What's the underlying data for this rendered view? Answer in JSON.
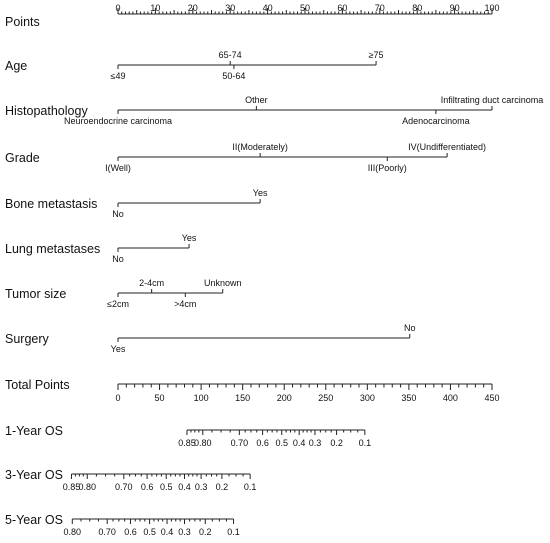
{
  "chart_data": {
    "type": "nomogram",
    "points_scale": {
      "label": "Points",
      "min": 0,
      "max": 100,
      "ticks": [
        0,
        10,
        20,
        30,
        40,
        50,
        60,
        70,
        80,
        90,
        100
      ]
    },
    "variables": [
      {
        "name": "Age",
        "min_points": 0,
        "max_points": 69,
        "levels": [
          {
            "label": "≤49",
            "points": 0,
            "side": "below"
          },
          {
            "label": "65-74",
            "points": 30,
            "side": "above"
          },
          {
            "label": "50-64",
            "points": 31,
            "side": "below"
          },
          {
            "label": "≥75",
            "points": 69,
            "side": "above"
          }
        ]
      },
      {
        "name": "Histopathology",
        "min_points": 0,
        "max_points": 100,
        "levels": [
          {
            "label": "Neuroendocrine carcinoma",
            "points": 0,
            "side": "below"
          },
          {
            "label": "Other",
            "points": 37,
            "side": "above"
          },
          {
            "label": "Adenocarcinoma",
            "points": 85,
            "side": "below"
          },
          {
            "label": "Infiltrating duct carcinoma",
            "points": 100,
            "side": "above"
          }
        ]
      },
      {
        "name": "Grade",
        "min_points": 0,
        "max_points": 88,
        "levels": [
          {
            "label": "I(Well)",
            "points": 0,
            "side": "below"
          },
          {
            "label": "II(Moderately)",
            "points": 38,
            "side": "above"
          },
          {
            "label": "III(Poorly)",
            "points": 72,
            "side": "below"
          },
          {
            "label": "IV(Undifferentiated)",
            "points": 88,
            "side": "above"
          }
        ]
      },
      {
        "name": "Bone metastasis",
        "min_points": 0,
        "max_points": 38,
        "levels": [
          {
            "label": "No",
            "points": 0,
            "side": "below"
          },
          {
            "label": "Yes",
            "points": 38,
            "side": "above"
          }
        ]
      },
      {
        "name": "Lung metastases",
        "min_points": 0,
        "max_points": 19,
        "levels": [
          {
            "label": "No",
            "points": 0,
            "side": "below"
          },
          {
            "label": "Yes",
            "points": 19,
            "side": "above"
          }
        ]
      },
      {
        "name": "Tumor size",
        "min_points": 0,
        "max_points": 28,
        "levels": [
          {
            "label": "≤2cm",
            "points": 0,
            "side": "below"
          },
          {
            "label": "2-4cm",
            "points": 9,
            "side": "above"
          },
          {
            "label": ">4cm",
            "points": 18,
            "side": "below"
          },
          {
            "label": "Unknown",
            "points": 28,
            "side": "above"
          }
        ]
      },
      {
        "name": "Surgery",
        "min_points": 0,
        "max_points": 78,
        "levels": [
          {
            "label": "Yes",
            "points": 0,
            "side": "below"
          },
          {
            "label": "No",
            "points": 78,
            "side": "above"
          }
        ]
      }
    ],
    "total_points_scale": {
      "label": "Total Points",
      "min": 0,
      "max": 450,
      "ticks": [
        0,
        50,
        100,
        150,
        200,
        250,
        300,
        350,
        400,
        450
      ]
    },
    "survival_scales": [
      {
        "label": "1-Year OS",
        "ticks": [
          {
            "label": "0.85",
            "total_points": 83
          },
          {
            "label": "0.80",
            "total_points": 102
          },
          {
            "label": "0.70",
            "total_points": 146
          },
          {
            "label": "0.6",
            "total_points": 174
          },
          {
            "label": "0.5",
            "total_points": 197
          },
          {
            "label": "0.4",
            "total_points": 218
          },
          {
            "label": "0.3",
            "total_points": 237
          },
          {
            "label": "0.2",
            "total_points": 263
          },
          {
            "label": "0.1",
            "total_points": 297
          }
        ]
      },
      {
        "label": "3-Year OS",
        "ticks": [
          {
            "label": "0.85",
            "total_points": -56
          },
          {
            "label": "0.80",
            "total_points": -37
          },
          {
            "label": "0.70",
            "total_points": 7
          },
          {
            "label": "0.6",
            "total_points": 35
          },
          {
            "label": "0.5",
            "total_points": 58
          },
          {
            "label": "0.4",
            "total_points": 80
          },
          {
            "label": "0.3",
            "total_points": 100
          },
          {
            "label": "0.2",
            "total_points": 125
          },
          {
            "label": "0.1",
            "total_points": 159
          }
        ]
      },
      {
        "label": "5-Year OS",
        "ticks": [
          {
            "label": "0.80",
            "total_points": -55
          },
          {
            "label": "0.70",
            "total_points": -13
          },
          {
            "label": "0.6",
            "total_points": 15
          },
          {
            "label": "0.5",
            "total_points": 38
          },
          {
            "label": "0.4",
            "total_points": 59
          },
          {
            "label": "0.3",
            "total_points": 80
          },
          {
            "label": "0.2",
            "total_points": 105
          },
          {
            "label": "0.1",
            "total_points": 139
          }
        ]
      }
    ]
  }
}
